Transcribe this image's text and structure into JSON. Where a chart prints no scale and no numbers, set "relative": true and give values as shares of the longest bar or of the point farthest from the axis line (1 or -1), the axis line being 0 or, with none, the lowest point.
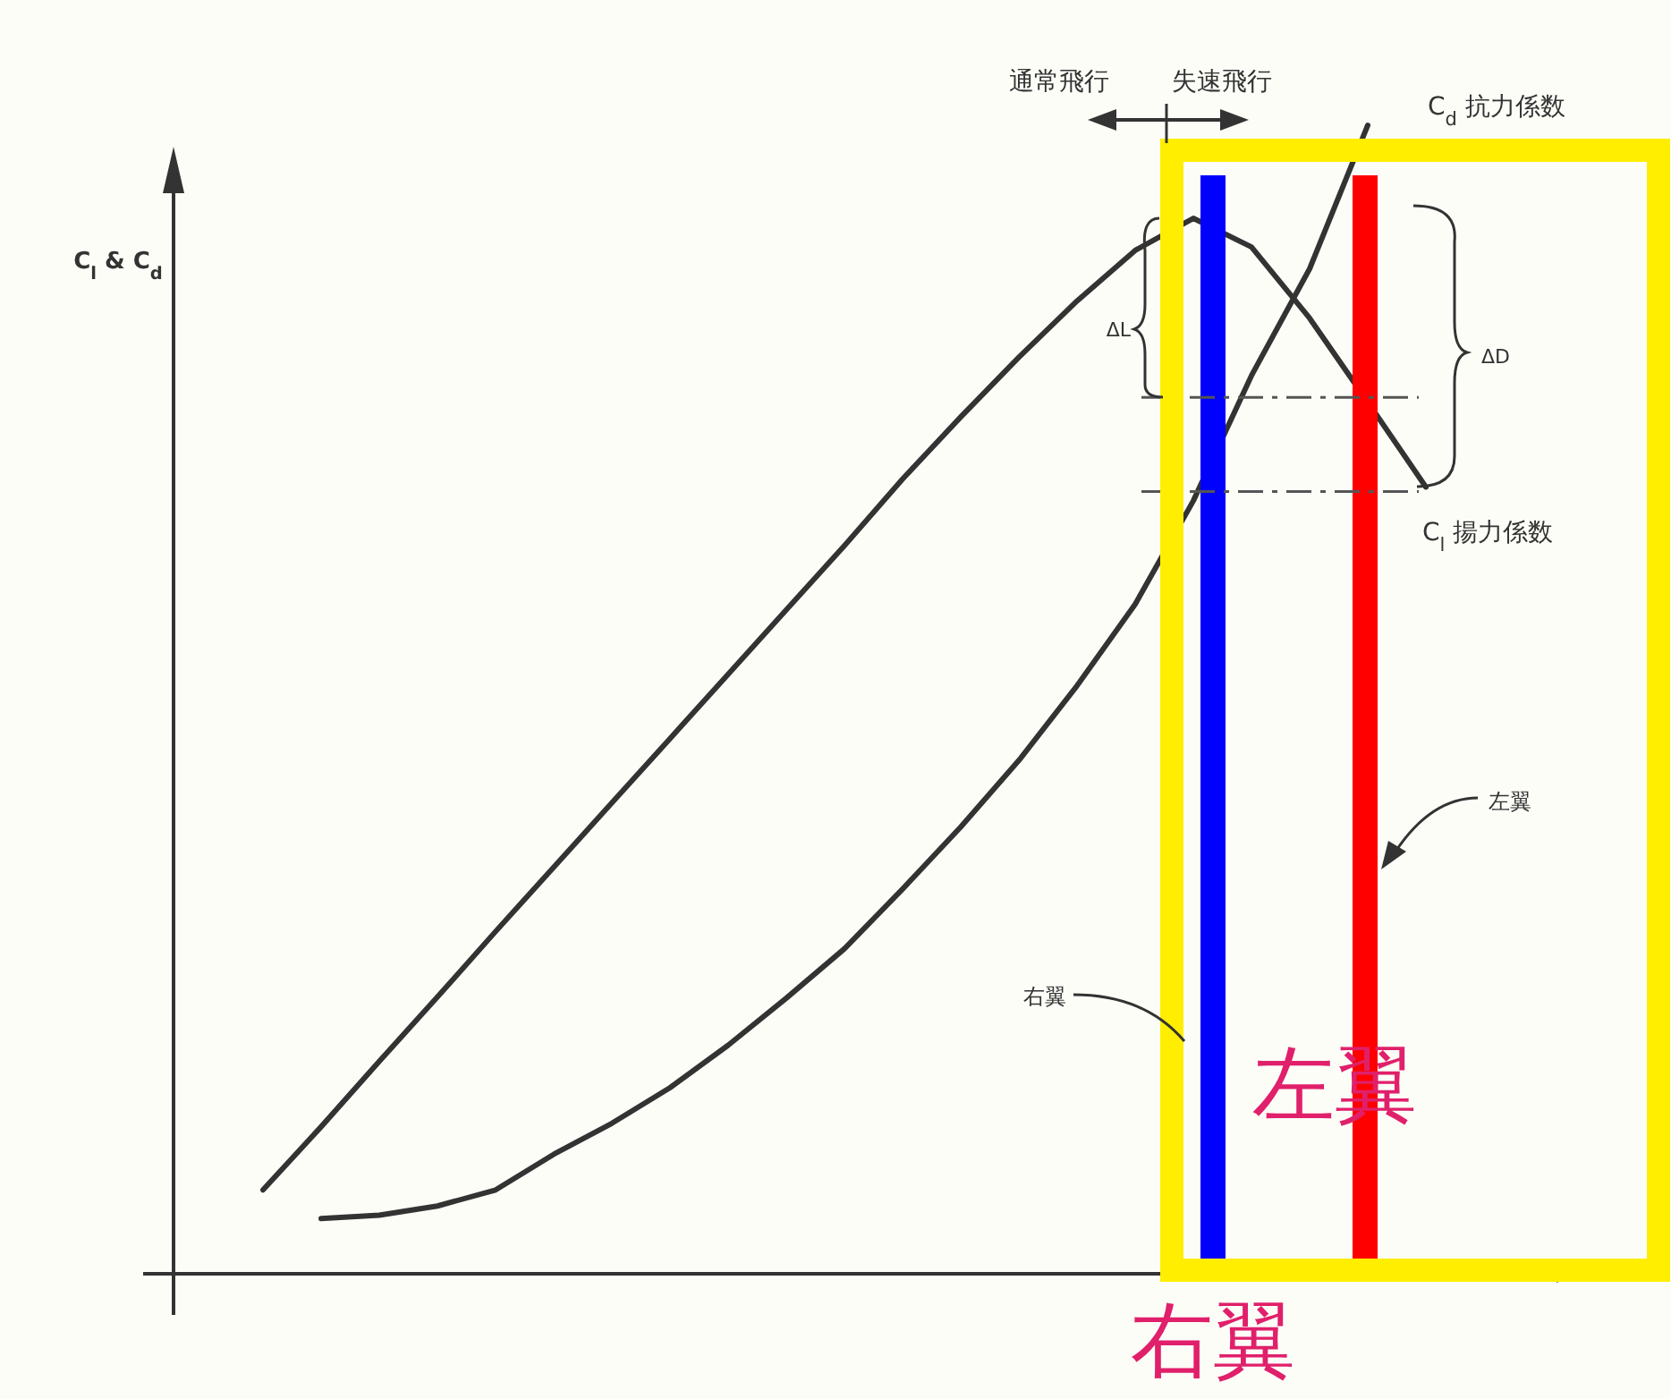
{
  "chart_data": {
    "type": "line",
    "relative": true,
    "ylabel": "C$_{l}$ & C$_{d}$",
    "categories": [
      null,
      null,
      null,
      null,
      null,
      null,
      null,
      null,
      null,
      null,
      null,
      null,
      null,
      null,
      null,
      null,
      null,
      null,
      null,
      null,
      null
    ],
    "series": [
      {
        "color": "#333333",
        "values": [
          0.073,
          0.128,
          0.185,
          0.241,
          0.298,
          0.354,
          0.41,
          0.466,
          0.522,
          0.578,
          0.634,
          0.692,
          0.746,
          0.798,
          0.847,
          0.891,
          0.919,
          0.894,
          0.832,
          0.759,
          0.685
        ]
      },
      {
        "color": "#333333",
        "values": [
          null,
          0.048,
          0.051,
          0.059,
          0.073,
          0.104,
          0.131,
          0.162,
          0.199,
          0.24,
          0.283,
          0.335,
          0.389,
          0.447,
          0.512,
          0.583,
          0.673,
          0.782,
          0.875,
          1,
          null
        ]
      }
    ],
    "ref_lines": [
      {
        "axis": "y",
        "value": 0.763,
        "color": "#555555",
        "line_style": "dashed"
      },
      {
        "axis": "y",
        "value": 0.681,
        "color": "#555555",
        "line_style": "dashed"
      }
    ],
    "annotations": [
      "通常飛行",
      "失速飛行",
      "C$_{d}$ 抗力係数",
      "C$_{l}$ 揚力係数",
      "ΔL",
      "ΔD",
      "右翼",
      "左翼",
      "右翼",
      "左翼"
    ]
  }
}
